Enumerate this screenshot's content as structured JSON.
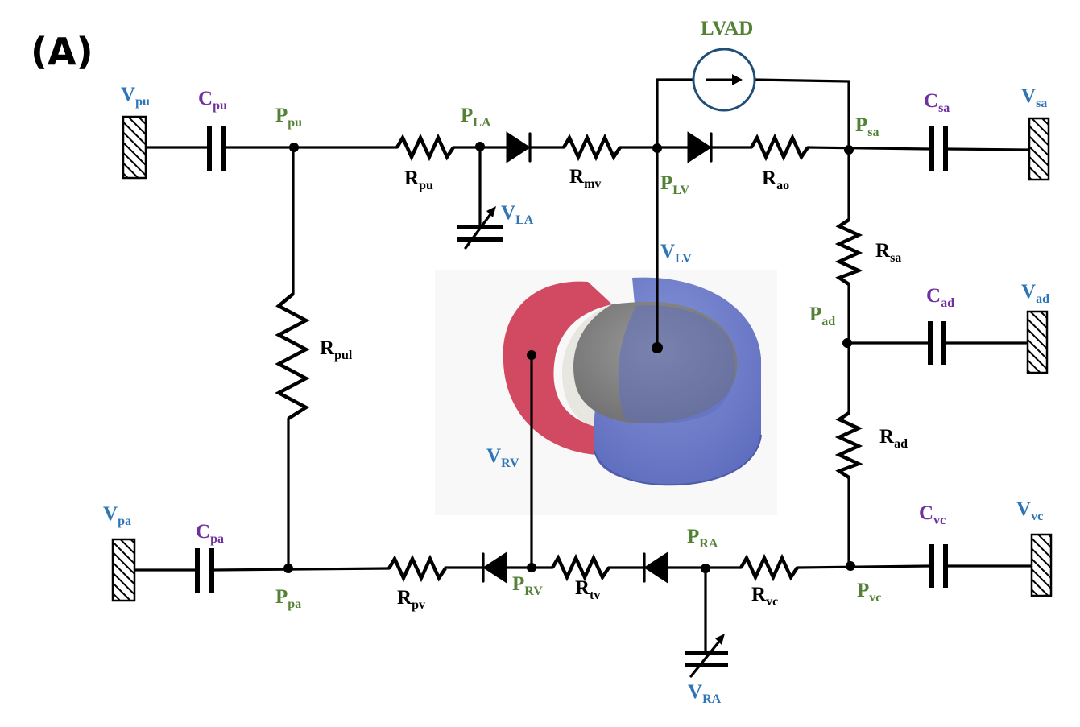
{
  "panel_label": "(A)",
  "colors": {
    "volume": "#2e75b6",
    "compliance": "#7030a0",
    "pressure": "#538135",
    "resistance": "#000000",
    "lvad_circle": "#1f4e79",
    "rv_wall": "#d24a62",
    "lv_wall": "#6f7fcf"
  },
  "labels": {
    "lvad": "LVAD",
    "v_pu": {
      "main": "V",
      "sub": "pu"
    },
    "c_pu": {
      "main": "C",
      "sub": "pu"
    },
    "p_pu": {
      "main": "P",
      "sub": "pu"
    },
    "r_pu": {
      "main": "R",
      "sub": "pu"
    },
    "p_la": {
      "main": "P",
      "sub": "LA"
    },
    "v_la": {
      "main": "V",
      "sub": "LA"
    },
    "r_mv": {
      "main": "R",
      "sub": "mv"
    },
    "p_lv": {
      "main": "P",
      "sub": "LV"
    },
    "v_lv": {
      "main": "V",
      "sub": "LV"
    },
    "r_ao": {
      "main": "R",
      "sub": "ao"
    },
    "p_sa": {
      "main": "P",
      "sub": "sa"
    },
    "c_sa": {
      "main": "C",
      "sub": "sa"
    },
    "v_sa": {
      "main": "V",
      "sub": "sa"
    },
    "r_sa": {
      "main": "R",
      "sub": "sa"
    },
    "p_ad": {
      "main": "P",
      "sub": "ad"
    },
    "c_ad": {
      "main": "C",
      "sub": "ad"
    },
    "v_ad": {
      "main": "V",
      "sub": "ad"
    },
    "r_ad": {
      "main": "R",
      "sub": "ad"
    },
    "r_pul": {
      "main": "R",
      "sub": "pul"
    },
    "v_rv": {
      "main": "V",
      "sub": "RV"
    },
    "v_pa": {
      "main": "V",
      "sub": "pa"
    },
    "c_pa": {
      "main": "C",
      "sub": "pa"
    },
    "p_pa": {
      "main": "P",
      "sub": "pa"
    },
    "r_pv": {
      "main": "R",
      "sub": "pv"
    },
    "p_rv": {
      "main": "P",
      "sub": "RV"
    },
    "r_tv": {
      "main": "R",
      "sub": "tv"
    },
    "p_ra": {
      "main": "P",
      "sub": "RA"
    },
    "r_vc": {
      "main": "R",
      "sub": "vc"
    },
    "p_vc": {
      "main": "P",
      "sub": "vc"
    },
    "c_vc": {
      "main": "C",
      "sub": "vc"
    },
    "v_vc": {
      "main": "V",
      "sub": "vc"
    },
    "v_ra": {
      "main": "V",
      "sub": "RA"
    }
  }
}
